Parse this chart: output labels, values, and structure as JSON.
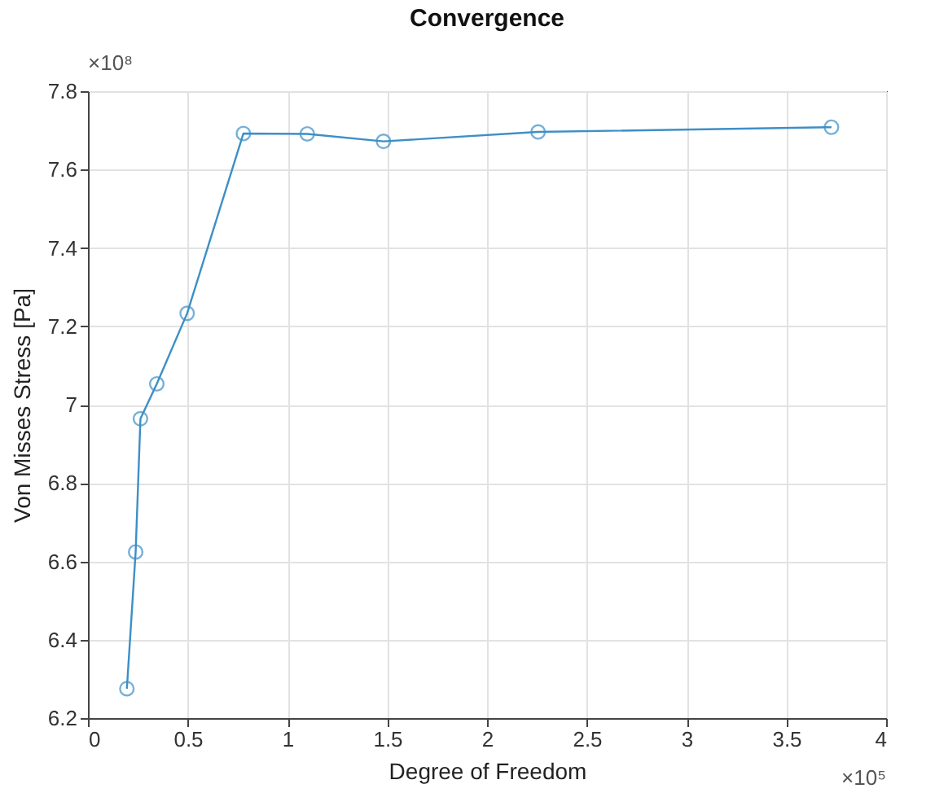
{
  "chart_data": {
    "type": "line",
    "title": "Convergence",
    "xlabel": "Degree of Freedom",
    "ylabel": "Von Misses Stress [Pa]",
    "annotations": [
      "×10⁸",
      "×10⁵"
    ],
    "x": [
      0.195,
      0.239,
      0.263,
      0.345,
      0.497,
      0.779,
      1.099,
      1.481,
      2.256,
      3.726
    ],
    "series": [
      {
        "color": "#3d8fc6",
        "values": [
          6.275,
          6.624,
          6.964,
          7.053,
          7.233,
          7.692,
          7.691,
          7.672,
          7.696,
          7.708
        ]
      }
    ],
    "xlim": [
      0,
      4
    ],
    "xticks": [
      0,
      0.5,
      1,
      1.5,
      2,
      2.5,
      3,
      3.5,
      4
    ],
    "ylim": [
      6.2,
      7.8
    ],
    "yticks": [
      6.2,
      6.4,
      6.6,
      6.8,
      7,
      7.2,
      7.4,
      7.6,
      7.8
    ],
    "grid": true,
    "marker": "circle",
    "line_style": "solid"
  }
}
